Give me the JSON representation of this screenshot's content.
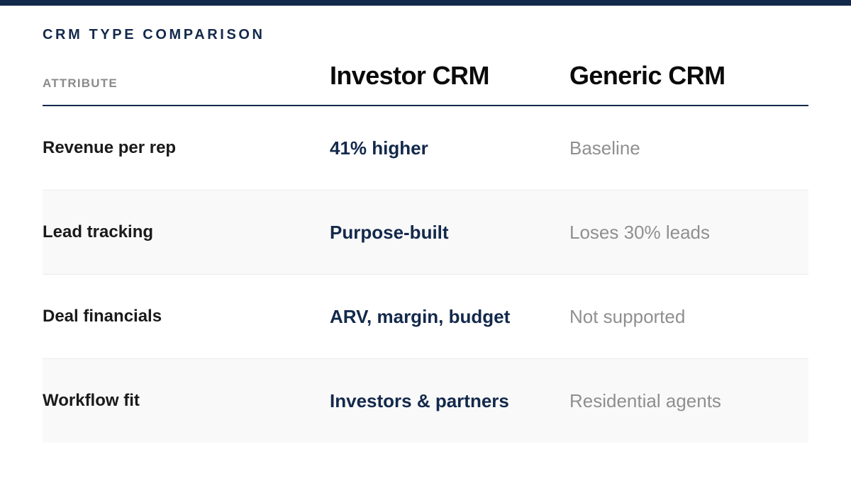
{
  "colors": {
    "accent": "#13294b",
    "muted": "#8f8f8f",
    "alt_row": "#f9f9f9"
  },
  "eyebrow": "CRM TYPE COMPARISON",
  "header": {
    "attribute_label": "ATTRIBUTE",
    "col1": "Investor CRM",
    "col2": "Generic CRM"
  },
  "rows": [
    {
      "attribute": "Revenue per rep",
      "investor": "41% higher",
      "generic": "Baseline"
    },
    {
      "attribute": "Lead tracking",
      "investor": "Purpose-built",
      "generic": "Loses 30% leads"
    },
    {
      "attribute": "Deal financials",
      "investor": "ARV, margin, budget",
      "generic": "Not supported"
    },
    {
      "attribute": "Workflow fit",
      "investor": "Investors & partners",
      "generic": "Residential agents"
    }
  ]
}
